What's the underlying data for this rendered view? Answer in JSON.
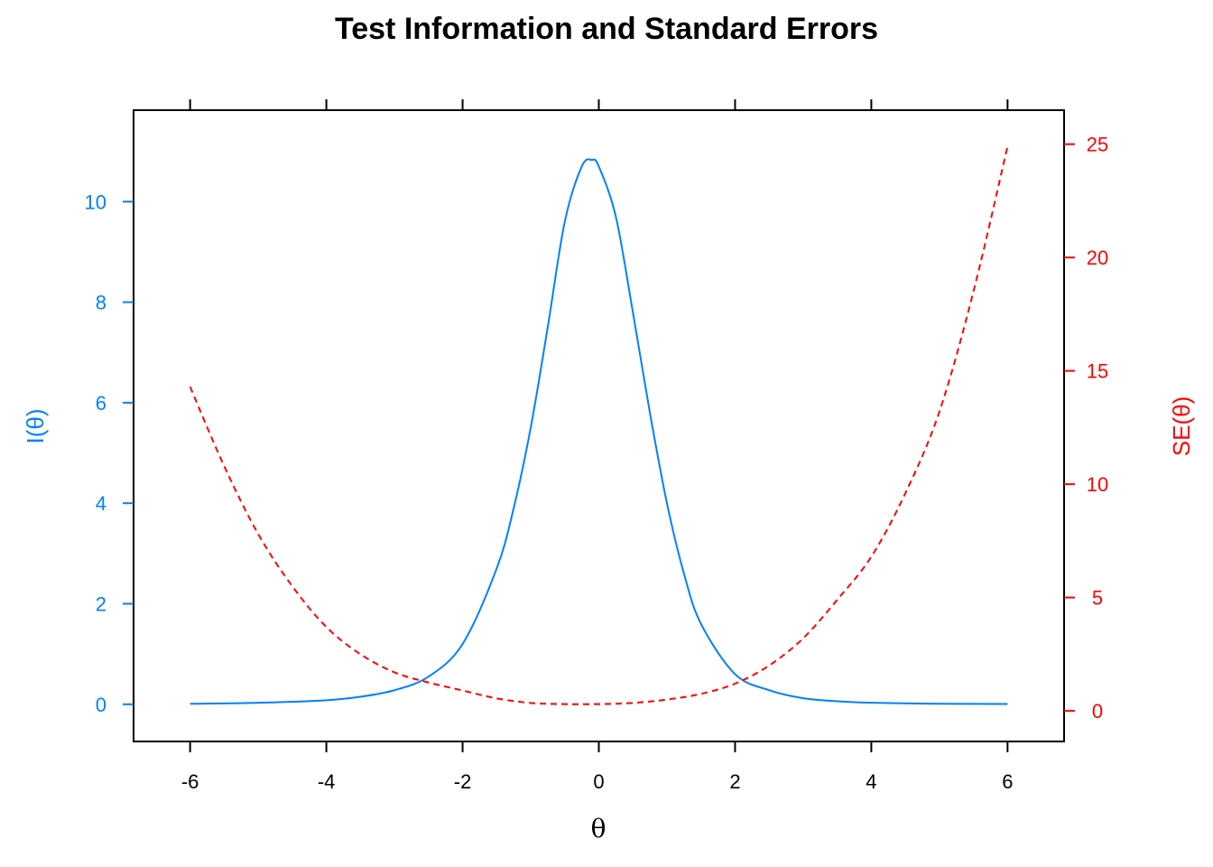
{
  "chart_data": {
    "type": "line",
    "title": "Test Information and Standard Errors",
    "xlabel": "θ",
    "ylabel_left": "I(θ)",
    "ylabel_right": "SE(θ)",
    "xlim": [
      -6.83,
      6.83
    ],
    "xticks": [
      "-6",
      "-4",
      "-2",
      "0",
      "2",
      "4",
      "6"
    ],
    "ylim_left": [
      -0.74,
      11.82
    ],
    "yticks_left": [
      "0",
      "2",
      "4",
      "6",
      "8",
      "10"
    ],
    "ylim_right": [
      -1.35,
      26.5
    ],
    "yticks_right": [
      "0",
      "5",
      "10",
      "15",
      "20",
      "25"
    ],
    "grid": false,
    "colors": {
      "information": "#0080ff",
      "se": "#ff0000",
      "axis": "#000000"
    },
    "series": [
      {
        "axis": "left",
        "style": "solid",
        "x": [
          -6,
          -5,
          -4,
          -3.5,
          -3,
          -2.5,
          -2,
          -1.5,
          -1.25,
          -1,
          -0.75,
          -0.5,
          -0.25,
          -0.1,
          0,
          0.25,
          0.5,
          0.75,
          1,
          1.25,
          1.5,
          2,
          2.5,
          3,
          3.5,
          4,
          5,
          6
        ],
        "y": [
          0.01,
          0.03,
          0.08,
          0.15,
          0.28,
          0.55,
          1.2,
          2.7,
          3.9,
          5.5,
          7.5,
          9.6,
          10.7,
          10.83,
          10.7,
          9.7,
          7.8,
          5.8,
          4.0,
          2.6,
          1.6,
          0.6,
          0.28,
          0.12,
          0.06,
          0.03,
          0.01,
          0.005
        ]
      },
      {
        "axis": "right",
        "style": "dashed",
        "x": [
          -6,
          -5.5,
          -5,
          -4.5,
          -4,
          -3.5,
          -3,
          -2.5,
          -2,
          -1.5,
          -1,
          -0.5,
          0,
          0.5,
          1,
          1.5,
          2,
          2.5,
          3,
          3.5,
          4,
          4.5,
          5,
          5.5,
          6
        ],
        "y": [
          14.3,
          10.8,
          7.8,
          5.5,
          3.7,
          2.5,
          1.7,
          1.25,
          0.9,
          0.55,
          0.35,
          0.3,
          0.3,
          0.35,
          0.5,
          0.75,
          1.2,
          2.0,
          3.2,
          4.9,
          6.8,
          9.6,
          13.2,
          18.5,
          24.9
        ]
      }
    ]
  }
}
